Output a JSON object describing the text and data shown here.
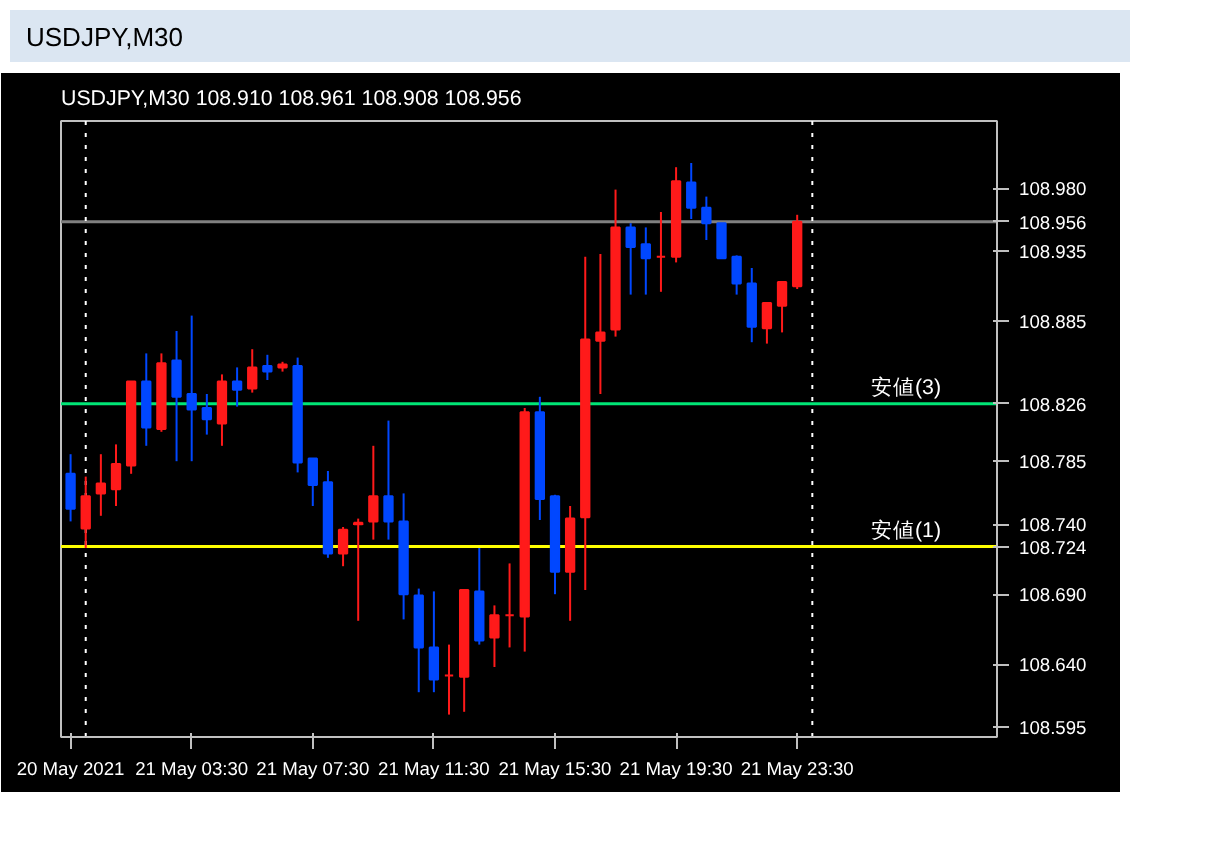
{
  "chart_data": {
    "type": "candlestick",
    "title": "USDJPY,M30",
    "subtitle": "USDJPY,M30  108.910 108.961 108.908 108.956",
    "x": [
      "2021-05-20T23:30",
      "2021-05-21T00:00",
      "2021-05-21T00:30",
      "2021-05-21T01:00",
      "2021-05-21T01:30",
      "2021-05-21T02:00",
      "2021-05-21T02:30",
      "2021-05-21T03:00",
      "2021-05-21T03:30",
      "2021-05-21T04:00",
      "2021-05-21T04:30",
      "2021-05-21T05:00",
      "2021-05-21T05:30",
      "2021-05-21T06:00",
      "2021-05-21T06:30",
      "2021-05-21T07:00",
      "2021-05-21T07:30",
      "2021-05-21T08:00",
      "2021-05-21T08:30",
      "2021-05-21T09:00",
      "2021-05-21T09:30",
      "2021-05-21T10:00",
      "2021-05-21T10:30",
      "2021-05-21T11:00",
      "2021-05-21T11:30",
      "2021-05-21T12:00",
      "2021-05-21T12:30",
      "2021-05-21T13:00",
      "2021-05-21T13:30",
      "2021-05-21T14:00",
      "2021-05-21T14:30",
      "2021-05-21T15:00",
      "2021-05-21T15:30",
      "2021-05-21T16:00",
      "2021-05-21T16:30",
      "2021-05-21T17:00",
      "2021-05-21T17:30",
      "2021-05-21T18:00",
      "2021-05-21T18:30",
      "2021-05-21T19:00",
      "2021-05-21T19:30",
      "2021-05-21T20:00",
      "2021-05-21T20:30",
      "2021-05-21T21:00",
      "2021-05-21T21:30",
      "2021-05-21T22:00",
      "2021-05-21T22:30",
      "2021-05-21T23:00",
      "2021-05-21T23:30"
    ],
    "ohlc": [
      [
        108.776,
        108.79,
        108.742,
        108.751
      ],
      [
        108.737,
        108.774,
        108.723,
        108.76
      ],
      [
        108.762,
        108.79,
        108.746,
        108.769
      ],
      [
        108.765,
        108.797,
        108.753,
        108.783
      ],
      [
        108.782,
        108.842,
        108.776,
        108.842
      ],
      [
        108.842,
        108.862,
        108.796,
        108.809
      ],
      [
        108.808,
        108.862,
        108.806,
        108.855
      ],
      [
        108.857,
        108.878,
        108.785,
        108.831
      ],
      [
        108.833,
        108.889,
        108.785,
        108.822
      ],
      [
        108.823,
        108.833,
        108.804,
        108.815
      ],
      [
        108.812,
        108.847,
        108.796,
        108.842
      ],
      [
        108.842,
        108.852,
        108.824,
        108.836
      ],
      [
        108.837,
        108.865,
        108.834,
        108.852
      ],
      [
        108.853,
        108.861,
        108.843,
        108.849
      ],
      [
        108.852,
        108.856,
        108.849,
        108.854
      ],
      [
        108.853,
        108.859,
        108.777,
        108.784
      ],
      [
        108.787,
        108.787,
        108.753,
        108.768
      ],
      [
        108.77,
        108.778,
        108.716,
        108.719
      ],
      [
        108.719,
        108.738,
        108.71,
        108.736
      ],
      [
        108.74,
        108.744,
        108.671,
        108.741
      ],
      [
        108.742,
        108.796,
        108.729,
        108.76
      ],
      [
        108.76,
        108.814,
        108.729,
        108.742
      ],
      [
        108.742,
        108.762,
        108.672,
        108.69
      ],
      [
        108.689,
        108.694,
        108.62,
        108.652
      ],
      [
        108.652,
        108.692,
        108.62,
        108.629
      ],
      [
        108.632,
        108.654,
        108.604,
        108.632
      ],
      [
        108.631,
        108.693,
        108.606,
        108.693
      ],
      [
        108.692,
        108.723,
        108.654,
        108.657
      ],
      [
        108.659,
        108.682,
        108.638,
        108.675
      ],
      [
        108.675,
        108.712,
        108.652,
        108.675
      ],
      [
        108.674,
        108.823,
        108.649,
        108.82
      ],
      [
        108.82,
        108.831,
        108.743,
        108.758
      ],
      [
        108.76,
        108.761,
        108.69,
        108.706
      ],
      [
        108.706,
        108.753,
        108.671,
        108.744
      ],
      [
        108.745,
        108.931,
        108.693,
        108.872
      ],
      [
        108.871,
        108.933,
        108.833,
        108.877
      ],
      [
        108.879,
        108.979,
        108.874,
        108.952
      ],
      [
        108.952,
        108.955,
        108.904,
        108.938
      ],
      [
        108.94,
        108.952,
        108.904,
        108.93
      ],
      [
        108.931,
        108.963,
        108.906,
        108.931
      ],
      [
        108.931,
        108.995,
        108.927,
        108.985
      ],
      [
        108.984,
        108.998,
        108.958,
        108.966
      ],
      [
        108.966,
        108.974,
        108.943,
        108.955
      ],
      [
        108.955,
        108.955,
        108.93,
        108.93
      ],
      [
        108.931,
        108.932,
        108.904,
        108.912
      ],
      [
        108.912,
        108.923,
        108.87,
        108.881
      ],
      [
        108.88,
        108.898,
        108.869,
        108.898
      ],
      [
        108.896,
        108.913,
        108.877,
        108.913
      ],
      [
        108.91,
        108.961,
        108.908,
        108.956
      ]
    ],
    "colors": [
      "#0047ff",
      "#ff1a1a",
      "#ff1a1a",
      "#ff1a1a",
      "#ff1a1a",
      "#0047ff",
      "#ff1a1a",
      "#0047ff",
      "#0047ff",
      "#0047ff",
      "#ff1a1a",
      "#0047ff",
      "#ff1a1a",
      "#0047ff",
      "#ff1a1a",
      "#0047ff",
      "#0047ff",
      "#0047ff",
      "#ff1a1a",
      "#ff1a1a",
      "#ff1a1a",
      "#0047ff",
      "#0047ff",
      "#0047ff",
      "#0047ff",
      "#ff1a1a",
      "#ff1a1a",
      "#0047ff",
      "#ff1a1a",
      "#ff1a1a",
      "#ff1a1a",
      "#0047ff",
      "#0047ff",
      "#ff1a1a",
      "#ff1a1a",
      "#ff1a1a",
      "#ff1a1a",
      "#0047ff",
      "#0047ff",
      "#ff1a1a",
      "#ff1a1a",
      "#0047ff",
      "#0047ff",
      "#0047ff",
      "#0047ff",
      "#0047ff",
      "#ff1a1a",
      "#ff1a1a",
      "#ff1a1a"
    ],
    "xlim": [
      "2021-05-20T23:11",
      "2021-05-22T06:06"
    ],
    "xticks": [
      {
        "value": "2021-05-20T23:30",
        "label": "20 May 2021"
      },
      {
        "value": "2021-05-21T03:30",
        "label": "21 May 03:30"
      },
      {
        "value": "2021-05-21T07:30",
        "label": "21 May 07:30"
      },
      {
        "value": "2021-05-21T11:30",
        "label": "21 May 11:30"
      },
      {
        "value": "2021-05-21T15:30",
        "label": "21 May 15:30"
      },
      {
        "value": "2021-05-21T19:30",
        "label": "21 May 19:30"
      },
      {
        "value": "2021-05-21T23:30",
        "label": "21 May 23:30"
      }
    ],
    "ylim": [
      108.588,
      109.028
    ],
    "yticks": [
      {
        "value": 108.98,
        "label": "108.980"
      },
      108.956,
      108.935,
      108.885,
      108.826,
      108.785,
      {
        "value": 108.74,
        "label": "108.740"
      },
      108.724,
      {
        "value": 108.69,
        "label": "108.690"
      },
      {
        "value": 108.64,
        "label": "108.640"
      },
      108.595
    ],
    "grid": false,
    "ref_lines": [
      {
        "axis": "y",
        "value": 108.956,
        "color": "#808080"
      },
      {
        "axis": "y",
        "value": 108.826,
        "label": "安値(3)",
        "color": "#00e676"
      },
      {
        "axis": "y",
        "value": 108.724,
        "label": "安値(1)",
        "color": "#ffff00"
      },
      {
        "axis": "x",
        "value": "2021-05-21T00:00",
        "color": "#ffffff",
        "line_style": "dotted"
      },
      {
        "axis": "x",
        "value": "2021-05-22T00:00",
        "color": "#ffffff",
        "line_style": "dotted"
      }
    ]
  }
}
